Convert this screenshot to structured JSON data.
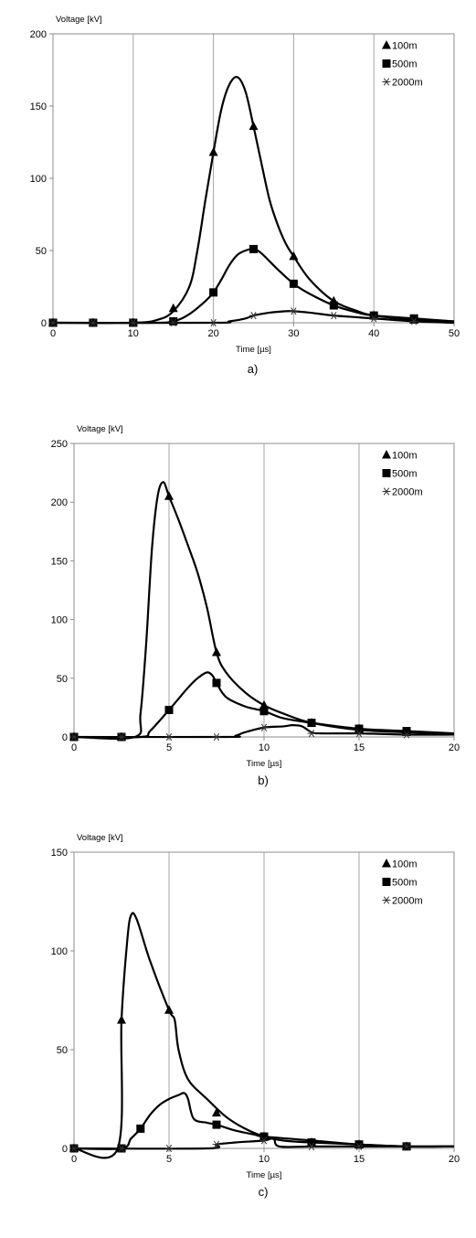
{
  "chart_data": [
    {
      "type": "line",
      "panel_label": "a)",
      "ylabel": "Voltage [kV]",
      "xlabel": "Time [µs]",
      "xlim": [
        0,
        50
      ],
      "ylim": [
        0,
        200
      ],
      "x_ticks": [
        0,
        10,
        20,
        30,
        40,
        50
      ],
      "y_ticks": [
        0,
        50,
        100,
        150,
        200
      ],
      "grid": "vertical",
      "legend_position": "top-right",
      "series": [
        {
          "name": "100m",
          "marker": "triangle",
          "curve": [
            [
              0,
              0
            ],
            [
              10,
              0
            ],
            [
              13,
              2
            ],
            [
              15,
              8
            ],
            [
              17,
              25
            ],
            [
              18,
              50
            ],
            [
              19,
              85
            ],
            [
              20,
              118
            ],
            [
              21,
              148
            ],
            [
              22,
              165
            ],
            [
              23,
              170
            ],
            [
              24,
              160
            ],
            [
              25,
              136
            ],
            [
              26,
              110
            ],
            [
              27,
              85
            ],
            [
              28,
              68
            ],
            [
              29,
              55
            ],
            [
              30,
              46
            ],
            [
              32,
              30
            ],
            [
              35,
              15
            ],
            [
              38,
              8
            ],
            [
              40,
              5
            ],
            [
              45,
              2
            ],
            [
              50,
              1
            ]
          ],
          "markers": [
            [
              0,
              0
            ],
            [
              5,
              0
            ],
            [
              10,
              0
            ],
            [
              15,
              10
            ],
            [
              20,
              118
            ],
            [
              25,
              136
            ],
            [
              30,
              46
            ],
            [
              35,
              15
            ],
            [
              40,
              5
            ],
            [
              45,
              2
            ]
          ]
        },
        {
          "name": "500m",
          "marker": "square",
          "curve": [
            [
              0,
              0
            ],
            [
              12,
              0
            ],
            [
              15,
              1
            ],
            [
              17,
              6
            ],
            [
              19,
              15
            ],
            [
              20,
              21
            ],
            [
              21,
              30
            ],
            [
              22,
              40
            ],
            [
              23,
              47
            ],
            [
              24,
              50
            ],
            [
              25,
              51
            ],
            [
              26,
              48
            ],
            [
              28,
              37
            ],
            [
              30,
              27
            ],
            [
              32,
              20
            ],
            [
              35,
              12
            ],
            [
              38,
              7
            ],
            [
              40,
              5
            ],
            [
              45,
              3
            ],
            [
              50,
              1
            ]
          ],
          "markers": [
            [
              0,
              0
            ],
            [
              5,
              0
            ],
            [
              10,
              0
            ],
            [
              15,
              1
            ],
            [
              20,
              21
            ],
            [
              25,
              51
            ],
            [
              30,
              27
            ],
            [
              35,
              12
            ],
            [
              40,
              5
            ],
            [
              45,
              3
            ]
          ]
        },
        {
          "name": "2000m",
          "marker": "asterisk",
          "curve": [
            [
              0,
              0
            ],
            [
              20,
              0
            ],
            [
              22,
              1
            ],
            [
              24,
              3
            ],
            [
              25,
              5
            ],
            [
              27,
              7
            ],
            [
              29,
              8
            ],
            [
              30,
              8
            ],
            [
              32,
              7
            ],
            [
              35,
              5
            ],
            [
              40,
              3
            ],
            [
              45,
              1
            ],
            [
              50,
              0
            ]
          ],
          "markers": [
            [
              0,
              0
            ],
            [
              5,
              0
            ],
            [
              10,
              0
            ],
            [
              15,
              0
            ],
            [
              20,
              0
            ],
            [
              25,
              5
            ],
            [
              30,
              8
            ],
            [
              35,
              5
            ],
            [
              40,
              3
            ],
            [
              45,
              1
            ]
          ]
        }
      ]
    },
    {
      "type": "line",
      "panel_label": "b)",
      "ylabel": "Voltage [kV]",
      "xlabel": "Time [µs]",
      "xlim": [
        0,
        20
      ],
      "ylim": [
        0,
        250
      ],
      "x_ticks": [
        0,
        5,
        10,
        15,
        20
      ],
      "y_ticks": [
        0,
        50,
        100,
        150,
        200,
        250
      ],
      "grid": "vertical",
      "legend_position": "top-right",
      "series": [
        {
          "name": "100m",
          "marker": "triangle",
          "curve": [
            [
              0,
              0
            ],
            [
              3.2,
              0
            ],
            [
              3.5,
              20
            ],
            [
              3.8,
              80
            ],
            [
              4.1,
              160
            ],
            [
              4.4,
              205
            ],
            [
              4.7,
              217
            ],
            [
              5,
              205
            ],
            [
              5.5,
              185
            ],
            [
              6,
              163
            ],
            [
              6.5,
              140
            ],
            [
              7,
              110
            ],
            [
              7.5,
              72
            ],
            [
              8,
              55
            ],
            [
              9,
              38
            ],
            [
              10,
              27
            ],
            [
              11,
              20
            ],
            [
              12.5,
              12
            ],
            [
              15,
              6
            ],
            [
              17.5,
              4
            ],
            [
              20,
              3
            ]
          ],
          "markers": [
            [
              0,
              0
            ],
            [
              2.5,
              0
            ],
            [
              5,
              205
            ],
            [
              7.5,
              72
            ],
            [
              10,
              27
            ],
            [
              12.5,
              12
            ],
            [
              15,
              7
            ],
            [
              17.5,
              4
            ]
          ]
        },
        {
          "name": "500m",
          "marker": "square",
          "curve": [
            [
              0,
              0
            ],
            [
              3.5,
              0
            ],
            [
              4,
              5
            ],
            [
              5,
              23
            ],
            [
              6,
              42
            ],
            [
              6.5,
              50
            ],
            [
              7,
              55
            ],
            [
              7.3,
              52
            ],
            [
              7.5,
              46
            ],
            [
              8,
              34
            ],
            [
              9,
              26
            ],
            [
              10,
              22
            ],
            [
              11,
              16
            ],
            [
              12.5,
              12
            ],
            [
              15,
              7
            ],
            [
              17.5,
              5
            ],
            [
              20,
              3
            ]
          ],
          "markers": [
            [
              0,
              0
            ],
            [
              2.5,
              0
            ],
            [
              5,
              23
            ],
            [
              7.5,
              46
            ],
            [
              10,
              22
            ],
            [
              12.5,
              12
            ],
            [
              15,
              7
            ],
            [
              17.5,
              5
            ]
          ]
        },
        {
          "name": "2000m",
          "marker": "asterisk",
          "curve": [
            [
              0,
              0
            ],
            [
              8,
              0
            ],
            [
              8.5,
              1
            ],
            [
              9,
              4
            ],
            [
              10,
              8
            ],
            [
              11,
              9
            ],
            [
              11.5,
              10
            ],
            [
              12,
              9
            ],
            [
              12.5,
              4
            ],
            [
              13,
              3
            ],
            [
              15,
              3
            ],
            [
              17.5,
              2
            ],
            [
              20,
              2
            ]
          ],
          "markers": [
            [
              0,
              0
            ],
            [
              2.5,
              0
            ],
            [
              5,
              0
            ],
            [
              7.5,
              0
            ],
            [
              10,
              8
            ],
            [
              12.5,
              3
            ],
            [
              15,
              3
            ],
            [
              17.5,
              2
            ]
          ]
        }
      ]
    },
    {
      "type": "line",
      "panel_label": "c)",
      "ylabel": "Voltage [kV]",
      "xlabel": "Time [µs]",
      "xlim": [
        0,
        20
      ],
      "ylim": [
        0,
        150
      ],
      "x_ticks": [
        0,
        5,
        10,
        15,
        20
      ],
      "y_ticks": [
        0,
        50,
        100,
        150
      ],
      "grid": "vertical",
      "legend_position": "top-right",
      "series": [
        {
          "name": "100m",
          "marker": "triangle",
          "curve": [
            [
              0,
              0
            ],
            [
              2.3,
              0
            ],
            [
              2.5,
              65
            ],
            [
              2.8,
              105
            ],
            [
              3,
              118
            ],
            [
              3.3,
              116
            ],
            [
              4,
              95
            ],
            [
              5,
              70
            ],
            [
              5.3,
              65
            ],
            [
              5.5,
              50
            ],
            [
              6,
              35
            ],
            [
              7,
              25
            ],
            [
              8,
              16
            ],
            [
              9,
              10
            ],
            [
              10,
              6
            ],
            [
              11,
              4
            ],
            [
              12.5,
              3
            ],
            [
              15,
              2
            ],
            [
              17.5,
              1
            ],
            [
              20,
              1
            ]
          ],
          "markers": [
            [
              0,
              0
            ],
            [
              2.5,
              65
            ],
            [
              5,
              70
            ],
            [
              7.5,
              18
            ],
            [
              10,
              6
            ],
            [
              12.5,
              3
            ],
            [
              15,
              2
            ],
            [
              17.5,
              1
            ]
          ]
        },
        {
          "name": "500m",
          "marker": "square",
          "curve": [
            [
              0,
              0
            ],
            [
              2.5,
              0
            ],
            [
              3,
              5
            ],
            [
              3.5,
              10
            ],
            [
              4,
              17
            ],
            [
              4.5,
              22
            ],
            [
              5,
              25
            ],
            [
              5.5,
              27
            ],
            [
              5.8,
              28
            ],
            [
              6,
              25
            ],
            [
              6.3,
              15
            ],
            [
              7,
              13
            ],
            [
              7.5,
              12
            ],
            [
              8.5,
              9
            ],
            [
              9.5,
              7
            ],
            [
              10,
              6
            ],
            [
              12.5,
              4
            ],
            [
              15,
              2
            ],
            [
              17.5,
              1
            ],
            [
              20,
              1
            ]
          ],
          "markers": [
            [
              0,
              0
            ],
            [
              2.5,
              0
            ],
            [
              3.5,
              10
            ],
            [
              7.5,
              12
            ],
            [
              10,
              6
            ],
            [
              12.5,
              3
            ],
            [
              15,
              2
            ],
            [
              17.5,
              1
            ]
          ]
        },
        {
          "name": "2000m",
          "marker": "asterisk",
          "curve": [
            [
              0,
              0
            ],
            [
              7,
              0
            ],
            [
              7.5,
              2
            ],
            [
              8.5,
              3
            ],
            [
              10,
              4
            ],
            [
              10.5,
              5
            ],
            [
              10.8,
              1
            ],
            [
              12.5,
              1
            ],
            [
              15,
              1
            ],
            [
              17.5,
              1
            ],
            [
              20,
              1
            ]
          ],
          "markers": [
            [
              0,
              0
            ],
            [
              2.5,
              0
            ],
            [
              5,
              0
            ],
            [
              7.5,
              2
            ],
            [
              10,
              4
            ],
            [
              12.5,
              1
            ],
            [
              15,
              1
            ],
            [
              17.5,
              1
            ]
          ]
        }
      ]
    }
  ]
}
